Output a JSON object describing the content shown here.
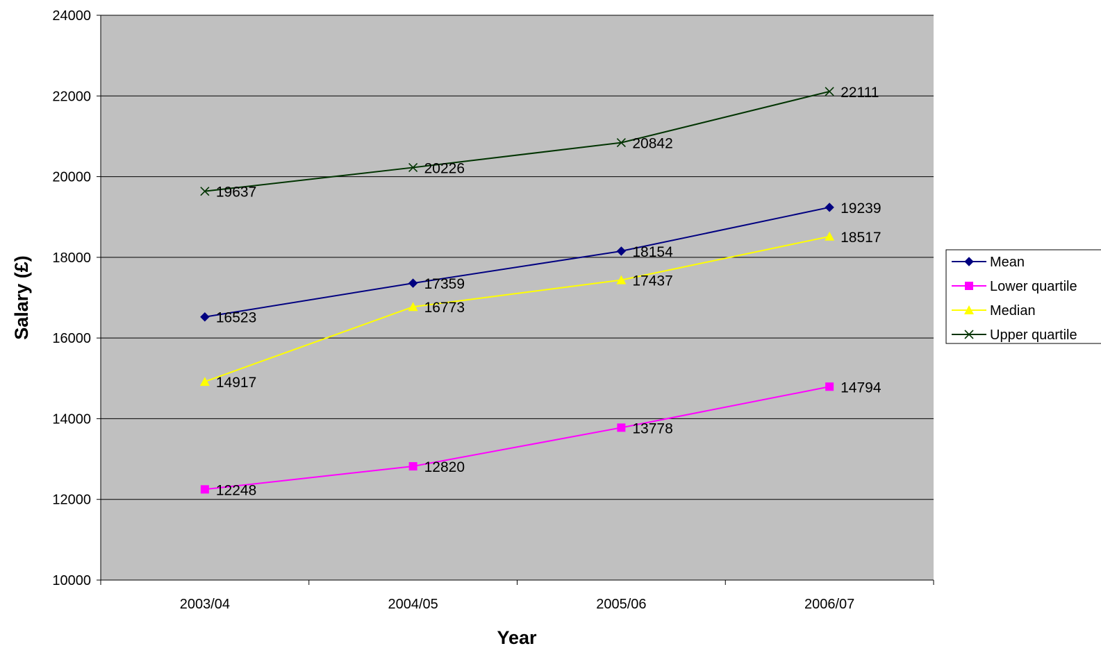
{
  "chart_data": {
    "type": "line",
    "title": "",
    "xlabel": "Year",
    "ylabel": "Salary (£)",
    "categories": [
      "2003/04",
      "2004/05",
      "2005/06",
      "2006/07"
    ],
    "ylim": [
      10000,
      24000
    ],
    "yticks": [
      10000,
      12000,
      14000,
      16000,
      18000,
      20000,
      22000,
      24000
    ],
    "grid": true,
    "legend_position": "right",
    "plot_background": "#c0c0c0",
    "series": [
      {
        "name": "Mean",
        "values": [
          16523,
          17359,
          18154,
          19239
        ],
        "color": "#000080",
        "marker": "diamond"
      },
      {
        "name": "Lower quartile",
        "values": [
          12248,
          12820,
          13778,
          14794
        ],
        "color": "#ff00ff",
        "marker": "square"
      },
      {
        "name": "Median",
        "values": [
          14917,
          16773,
          17437,
          18517
        ],
        "color": "#ffff00",
        "marker": "triangle"
      },
      {
        "name": "Upper quartile",
        "values": [
          19637,
          20226,
          20842,
          22111
        ],
        "color": "#003300",
        "marker": "x"
      }
    ]
  }
}
